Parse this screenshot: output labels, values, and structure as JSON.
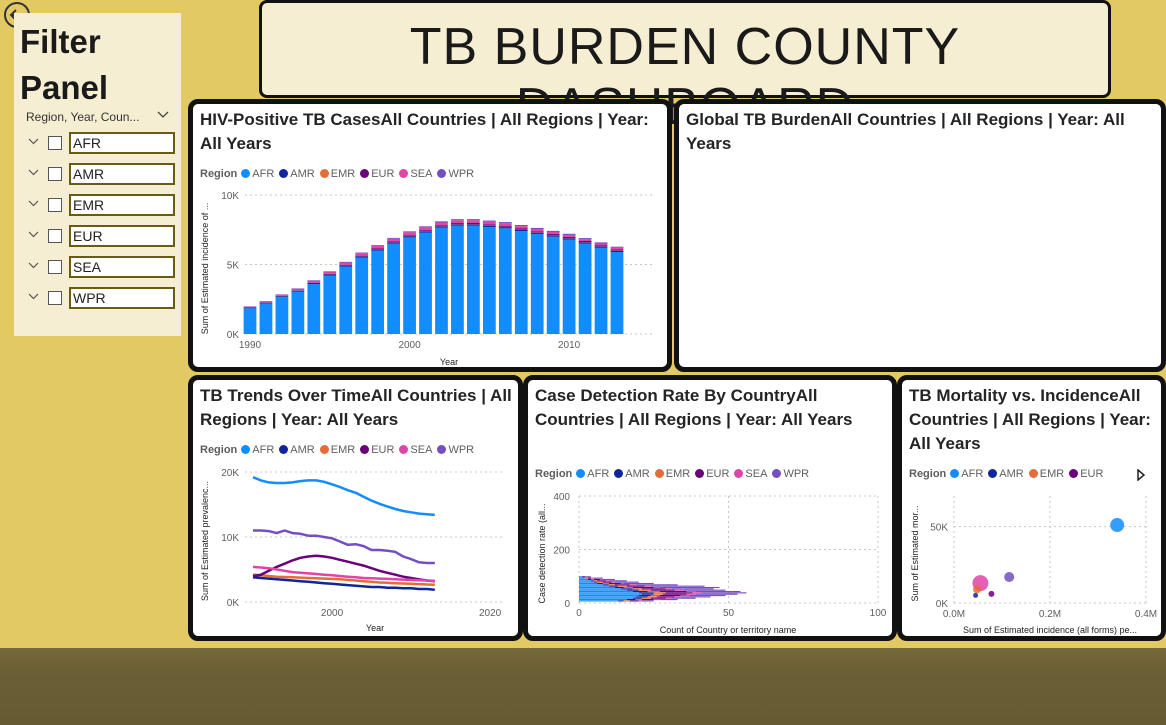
{
  "title": "TB BURDEN COUNTY DASHBOARD",
  "filter_panel": {
    "title": "Filter Panel",
    "header": "Region, Year, Coun...",
    "items": [
      "AFR",
      "AMR",
      "EMR",
      "EUR",
      "SEA",
      "WPR"
    ]
  },
  "region_colors": {
    "AFR": "#118dff",
    "AMR": "#12239e",
    "EMR": "#e66c37",
    "EUR": "#6b007b",
    "SEA": "#e044a7",
    "WPR": "#744ec2"
  },
  "cards": {
    "hiv": {
      "title": "HIV-Positive TB CasesAll Countries | All Regions | Year: All Years",
      "legend_title": "Region",
      "legend": [
        "AFR",
        "AMR",
        "EMR",
        "EUR",
        "SEA",
        "WPR"
      ]
    },
    "global": {
      "title": "Global TB BurdenAll Countries | All Regions | Year: All Years"
    },
    "trends": {
      "title": "TB Trends Over TimeAll Countries | All Regions | Year: All Years",
      "legend_title": "Region",
      "legend": [
        "AFR",
        "AMR",
        "EMR",
        "EUR",
        "SEA",
        "WPR"
      ]
    },
    "detection": {
      "title": "Case Detection Rate By CountryAll Countries | All Regions | Year: All Years",
      "legend_title": "Region",
      "legend": [
        "AFR",
        "AMR",
        "EMR",
        "EUR",
        "SEA",
        "WPR"
      ]
    },
    "mortality": {
      "title": "TB Mortality vs. IncidenceAll Countries | All Regions | Year: All Years",
      "legend_title": "Region",
      "legend": [
        "AFR",
        "AMR",
        "EMR",
        "EUR"
      ]
    }
  },
  "chart_data": [
    {
      "id": "hiv",
      "type": "bar",
      "stacked": true,
      "xlabel": "Year",
      "ylabel": "Sum of Estimated incidence of ...",
      "x_ticks": [
        "1990",
        "2000",
        "2010"
      ],
      "y_ticks": [
        "0K",
        "5K",
        "10K"
      ],
      "ylim": [
        0,
        10000
      ],
      "categories": [
        1990,
        1991,
        1992,
        1993,
        1994,
        1995,
        1996,
        1997,
        1998,
        1999,
        2000,
        2001,
        2002,
        2003,
        2004,
        2005,
        2006,
        2007,
        2008,
        2009,
        2010,
        2011,
        2012,
        2013
      ],
      "series": [
        {
          "name": "AFR",
          "values": [
            1850,
            2200,
            2650,
            3050,
            3600,
            4200,
            4850,
            5500,
            6000,
            6500,
            6950,
            7300,
            7650,
            7800,
            7800,
            7700,
            7600,
            7400,
            7200,
            7000,
            6800,
            6500,
            6200,
            5900
          ]
        },
        {
          "name": "AMR",
          "values": [
            60,
            60,
            70,
            70,
            70,
            80,
            80,
            80,
            90,
            90,
            90,
            90,
            90,
            90,
            90,
            90,
            90,
            90,
            90,
            90,
            90,
            90,
            90,
            90
          ]
        },
        {
          "name": "EMR",
          "values": [
            10,
            10,
            10,
            10,
            15,
            15,
            15,
            15,
            15,
            20,
            20,
            20,
            20,
            20,
            20,
            20,
            20,
            20,
            20,
            20,
            20,
            20,
            20,
            20
          ]
        },
        {
          "name": "EUR",
          "values": [
            10,
            10,
            15,
            20,
            25,
            30,
            35,
            40,
            45,
            50,
            55,
            60,
            65,
            70,
            75,
            80,
            80,
            80,
            80,
            80,
            80,
            80,
            80,
            80
          ]
        },
        {
          "name": "SEA",
          "values": [
            40,
            60,
            80,
            100,
            120,
            140,
            160,
            170,
            180,
            190,
            200,
            200,
            200,
            200,
            200,
            190,
            180,
            170,
            160,
            150,
            140,
            130,
            120,
            110
          ]
        },
        {
          "name": "WPR",
          "values": [
            20,
            25,
            30,
            35,
            40,
            45,
            50,
            55,
            60,
            65,
            70,
            75,
            80,
            80,
            80,
            80,
            80,
            80,
            80,
            80,
            80,
            80,
            80,
            80
          ]
        }
      ]
    },
    {
      "id": "trends",
      "type": "line",
      "xlabel": "Year",
      "ylabel": "Sum of Estimated prevalenc...",
      "x_ticks": [
        "2000",
        "2020"
      ],
      "y_ticks": [
        "0K",
        "10K",
        "20K"
      ],
      "ylim": [
        0,
        20000
      ],
      "x": [
        1990,
        1991,
        1992,
        1993,
        1994,
        1995,
        1996,
        1997,
        1998,
        1999,
        2000,
        2001,
        2002,
        2003,
        2004,
        2005,
        2006,
        2007,
        2008,
        2009,
        2010,
        2011,
        2012,
        2013
      ],
      "series": [
        {
          "name": "AFR",
          "values": [
            19200,
            18700,
            18400,
            18300,
            18300,
            18400,
            18600,
            18700,
            18700,
            18500,
            18100,
            17700,
            17200,
            16800,
            16200,
            15600,
            15100,
            14700,
            14300,
            14000,
            13800,
            13600,
            13500,
            13400
          ]
        },
        {
          "name": "AMR",
          "values": [
            3800,
            3700,
            3600,
            3500,
            3400,
            3300,
            3200,
            3100,
            3000,
            2900,
            2800,
            2700,
            2600,
            2500,
            2400,
            2300,
            2300,
            2200,
            2200,
            2100,
            2100,
            2000,
            2000,
            1900
          ]
        },
        {
          "name": "EMR",
          "values": [
            4200,
            4100,
            4000,
            3900,
            3850,
            3800,
            3750,
            3700,
            3650,
            3600,
            3550,
            3500,
            3400,
            3300,
            3200,
            3100,
            3000,
            2950,
            2900,
            2850,
            2800,
            2750,
            2700,
            2650
          ]
        },
        {
          "name": "EUR",
          "values": [
            4000,
            4200,
            4800,
            5400,
            5900,
            6400,
            6800,
            7000,
            7100,
            7000,
            6800,
            6500,
            6200,
            5900,
            5600,
            5200,
            4800,
            4500,
            4200,
            3900,
            3700,
            3500,
            3300,
            3200
          ]
        },
        {
          "name": "SEA",
          "values": [
            5400,
            5300,
            5200,
            5000,
            4800,
            4600,
            4500,
            4400,
            4300,
            4200,
            4100,
            4000,
            3900,
            3800,
            3700,
            3650,
            3600,
            3550,
            3500,
            3450,
            3400,
            3350,
            3300,
            3250
          ]
        },
        {
          "name": "WPR",
          "values": [
            11000,
            11000,
            10900,
            10600,
            11000,
            10600,
            10500,
            10200,
            10200,
            10000,
            9800,
            9300,
            8800,
            8900,
            8600,
            8000,
            8000,
            7900,
            7700,
            7000,
            6600,
            6100,
            6000,
            6000
          ]
        }
      ]
    },
    {
      "id": "detection",
      "type": "bar",
      "orientation": "horizontal",
      "xlabel": "Count of Country or territory name",
      "ylabel": "Case detection rate (all...",
      "x_ticks": [
        "0",
        "50",
        "100"
      ],
      "y_ticks": [
        "0",
        "200",
        "400"
      ],
      "xlim": [
        0,
        100
      ],
      "ylim": [
        0,
        400
      ],
      "bins_start": 5,
      "bins_end": 95,
      "bins_step": 5,
      "series": [
        {
          "name": "AFR",
          "values": [
            13,
            16,
            18,
            19,
            20,
            21,
            20,
            18,
            16,
            14,
            12,
            10,
            8,
            6,
            5,
            4,
            3,
            2,
            1
          ]
        },
        {
          "name": "AMR",
          "values": [
            2,
            3,
            3,
            4,
            4,
            4,
            5,
            5,
            4,
            4,
            3,
            3,
            2,
            2,
            1,
            1,
            1,
            0,
            0
          ]
        },
        {
          "name": "EMR",
          "values": [
            2,
            2,
            3,
            3,
            3,
            3,
            4,
            4,
            4,
            3,
            3,
            3,
            2,
            2,
            2,
            1,
            1,
            1,
            0
          ]
        },
        {
          "name": "EUR",
          "values": [
            3,
            4,
            5,
            6,
            7,
            8,
            9,
            9,
            8,
            8,
            7,
            6,
            5,
            4,
            3,
            3,
            2,
            1,
            1
          ]
        },
        {
          "name": "SEA",
          "values": [
            1,
            2,
            2,
            2,
            3,
            3,
            3,
            3,
            3,
            2,
            2,
            2,
            2,
            1,
            1,
            1,
            1,
            1,
            0
          ]
        },
        {
          "name": "WPR",
          "values": [
            4,
            6,
            8,
            10,
            12,
            14,
            15,
            15,
            14,
            14,
            20,
            18,
            14,
            10,
            8,
            6,
            4,
            3,
            2
          ]
        }
      ]
    },
    {
      "id": "mortality",
      "type": "scatter",
      "xlabel": "Sum of Estimated incidence (all forms) pe...",
      "ylabel": "Sum of Estimated mor...",
      "x_ticks": [
        "0.0M",
        "0.2M",
        "0.4M"
      ],
      "y_ticks": [
        "0K",
        "50K"
      ],
      "xlim": [
        0,
        0.4
      ],
      "ylim": [
        0,
        70000
      ],
      "points": [
        {
          "series": "AFR",
          "x": 0.34,
          "y": 51000,
          "size": 7
        },
        {
          "series": "SEA",
          "x": 0.055,
          "y": 13000,
          "size": 8
        },
        {
          "series": "WPR",
          "x": 0.115,
          "y": 17000,
          "size": 5
        },
        {
          "series": "EMR",
          "x": 0.048,
          "y": 9000,
          "size": 4
        },
        {
          "series": "EUR",
          "x": 0.078,
          "y": 6000,
          "size": 3
        },
        {
          "series": "AMR",
          "x": 0.045,
          "y": 5000,
          "size": 2.5
        }
      ]
    }
  ]
}
